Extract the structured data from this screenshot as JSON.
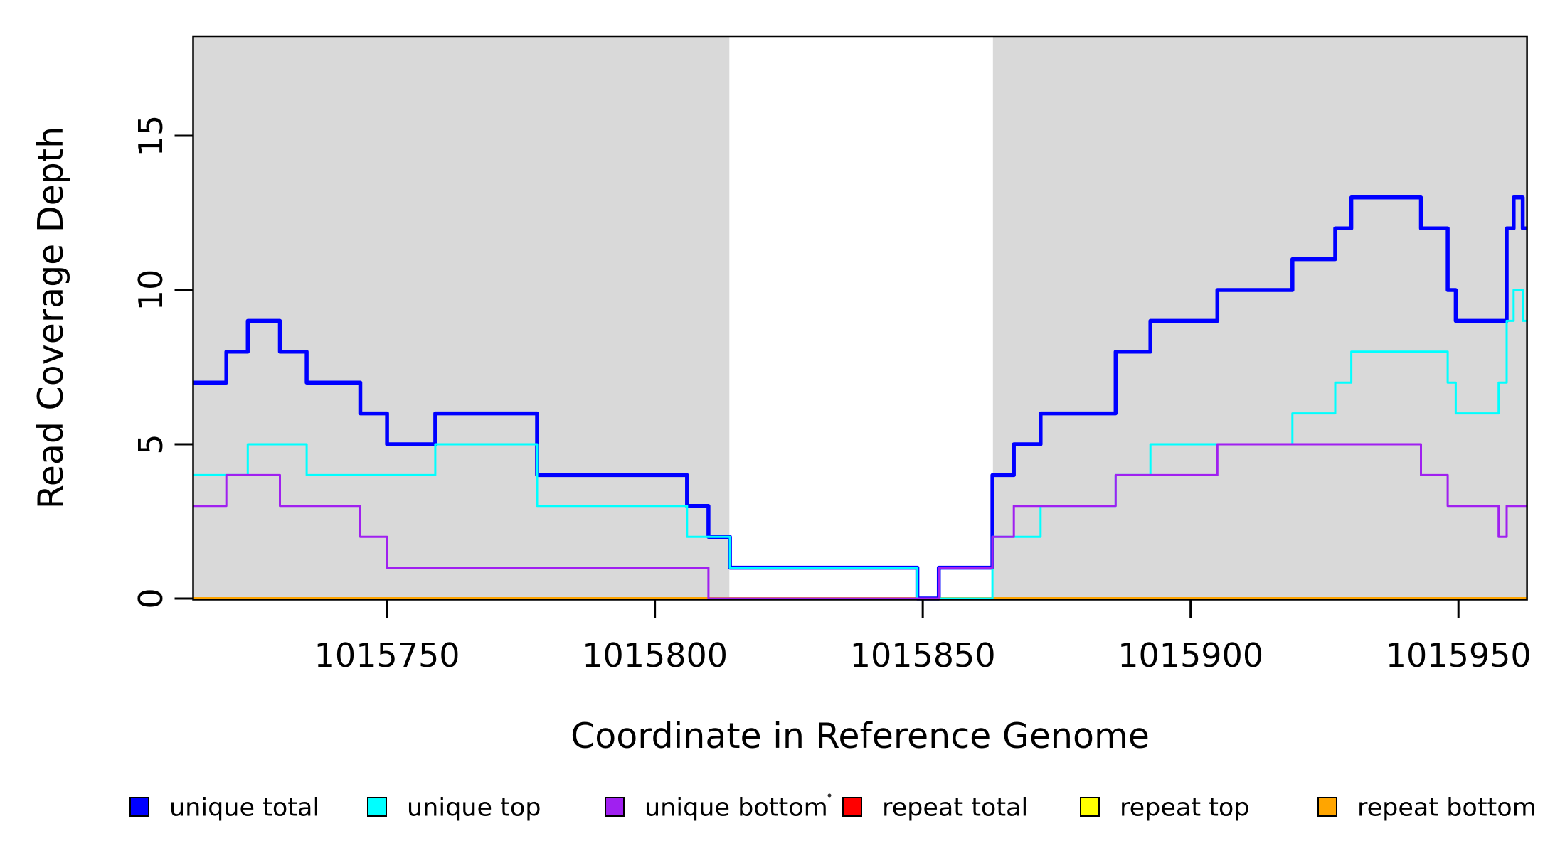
{
  "chart_data": {
    "type": "line",
    "subtype": "step-coverage-plot",
    "title": "",
    "xlabel": "Coordinate in Reference Genome",
    "ylabel": "Read Coverage Depth",
    "xlim": [
      1015713.8,
      1015962.8
    ],
    "ylim": [
      0,
      18.2
    ],
    "grid": false,
    "background_color": "#ffffff",
    "band_color": "#d9d9d9",
    "frame_color": "#000000",
    "shaded_regions": [
      {
        "name": "unique-region-left",
        "x0": 1015713.8,
        "x1": 1015813.9
      },
      {
        "name": "unique-region-right",
        "x0": 1015863.1,
        "x1": 1015962.8
      }
    ],
    "x_axis": {
      "ticks": [
        1015750,
        1015800,
        1015850,
        1015900,
        1015950
      ]
    },
    "y_axis": {
      "ticks": [
        0,
        5,
        10,
        15
      ]
    },
    "series": [
      {
        "name": "repeat total",
        "color": "#FF0000",
        "line_width": 3,
        "segments": [
          [
            1015713.8,
            1015962.8,
            0
          ]
        ]
      },
      {
        "name": "repeat top",
        "color": "#FFFF00",
        "line_width": 3,
        "segments": [
          [
            1015713.8,
            1015962.8,
            0
          ]
        ]
      },
      {
        "name": "repeat bottom",
        "color": "#FFA500",
        "line_width": 4,
        "segments": [
          [
            1015713.8,
            1015962.8,
            0
          ]
        ]
      },
      {
        "name": "unique total",
        "color": "#0000FF",
        "line_width": 5.5,
        "segments": [
          [
            1015713.8,
            1015720,
            7
          ],
          [
            1015720,
            1015724,
            8
          ],
          [
            1015724,
            1015730,
            9
          ],
          [
            1015730,
            1015735,
            8
          ],
          [
            1015735,
            1015745,
            7
          ],
          [
            1015745,
            1015750,
            6
          ],
          [
            1015750,
            1015759,
            5
          ],
          [
            1015759,
            1015778,
            6
          ],
          [
            1015778,
            1015806,
            4
          ],
          [
            1015806,
            1015810,
            3
          ],
          [
            1015810,
            1015814,
            2
          ],
          [
            1015814,
            1015849,
            1
          ],
          [
            1015849,
            1015853,
            0
          ],
          [
            1015853,
            1015863,
            1
          ],
          [
            1015863,
            1015867,
            4
          ],
          [
            1015867,
            1015872,
            5
          ],
          [
            1015872,
            1015886,
            6
          ],
          [
            1015886,
            1015892.5,
            8
          ],
          [
            1015892.5,
            1015905,
            9
          ],
          [
            1015905,
            1015919,
            10
          ],
          [
            1015919,
            1015927,
            11
          ],
          [
            1015927,
            1015930,
            12
          ],
          [
            1015930,
            1015943,
            13
          ],
          [
            1015943,
            1015948,
            12
          ],
          [
            1015948,
            1015949.5,
            10
          ],
          [
            1015949.5,
            1015959,
            9
          ],
          [
            1015959,
            1015960.3,
            12
          ],
          [
            1015960.3,
            1015962,
            13
          ],
          [
            1015962,
            1015962.8,
            12
          ]
        ]
      },
      {
        "name": "unique top",
        "color": "#00FFFF",
        "line_width": 3,
        "segments": [
          [
            1015713.8,
            1015724,
            4
          ],
          [
            1015724,
            1015735,
            5
          ],
          [
            1015735,
            1015759,
            4
          ],
          [
            1015759,
            1015778,
            5
          ],
          [
            1015778,
            1015806,
            3
          ],
          [
            1015806,
            1015814,
            2
          ],
          [
            1015814,
            1015849,
            1
          ],
          [
            1015849,
            1015863,
            0
          ],
          [
            1015863,
            1015872,
            2
          ],
          [
            1015872,
            1015886,
            3
          ],
          [
            1015886,
            1015892.5,
            4
          ],
          [
            1015892.5,
            1015919,
            5
          ],
          [
            1015919,
            1015927,
            6
          ],
          [
            1015927,
            1015930,
            7
          ],
          [
            1015930,
            1015948,
            8
          ],
          [
            1015948,
            1015949.5,
            7
          ],
          [
            1015949.5,
            1015957.5,
            6
          ],
          [
            1015957.5,
            1015959,
            7
          ],
          [
            1015959,
            1015960.3,
            9
          ],
          [
            1015960.3,
            1015962,
            10
          ],
          [
            1015962,
            1015962.8,
            9
          ]
        ]
      },
      {
        "name": "unique bottom",
        "color": "#A020F0",
        "line_width": 3,
        "segments": [
          [
            1015713.8,
            1015720,
            3
          ],
          [
            1015720,
            1015730,
            4
          ],
          [
            1015730,
            1015745,
            3
          ],
          [
            1015745,
            1015750,
            2
          ],
          [
            1015750,
            1015810,
            1
          ],
          [
            1015810,
            1015853,
            0
          ],
          [
            1015853,
            1015863,
            1
          ],
          [
            1015863,
            1015867,
            2
          ],
          [
            1015867,
            1015886,
            3
          ],
          [
            1015886,
            1015905,
            4
          ],
          [
            1015905,
            1015943,
            5
          ],
          [
            1015943,
            1015948,
            4
          ],
          [
            1015948,
            1015957.5,
            3
          ],
          [
            1015957.5,
            1015959,
            2
          ],
          [
            1015959,
            1015962.8,
            3
          ]
        ]
      }
    ],
    "legend": {
      "position": "bottom",
      "entries": [
        {
          "label": "unique total",
          "color": "#0000FF"
        },
        {
          "label": "unique top",
          "color": "#00FFFF"
        },
        {
          "label": "unique bottom",
          "color": "#A020F0"
        },
        {
          "label": "repeat total",
          "color": "#FF0000"
        },
        {
          "label": "repeat top",
          "color": "#FFFF00"
        },
        {
          "label": "repeat bottom",
          "color": "#FFA500"
        }
      ]
    }
  }
}
